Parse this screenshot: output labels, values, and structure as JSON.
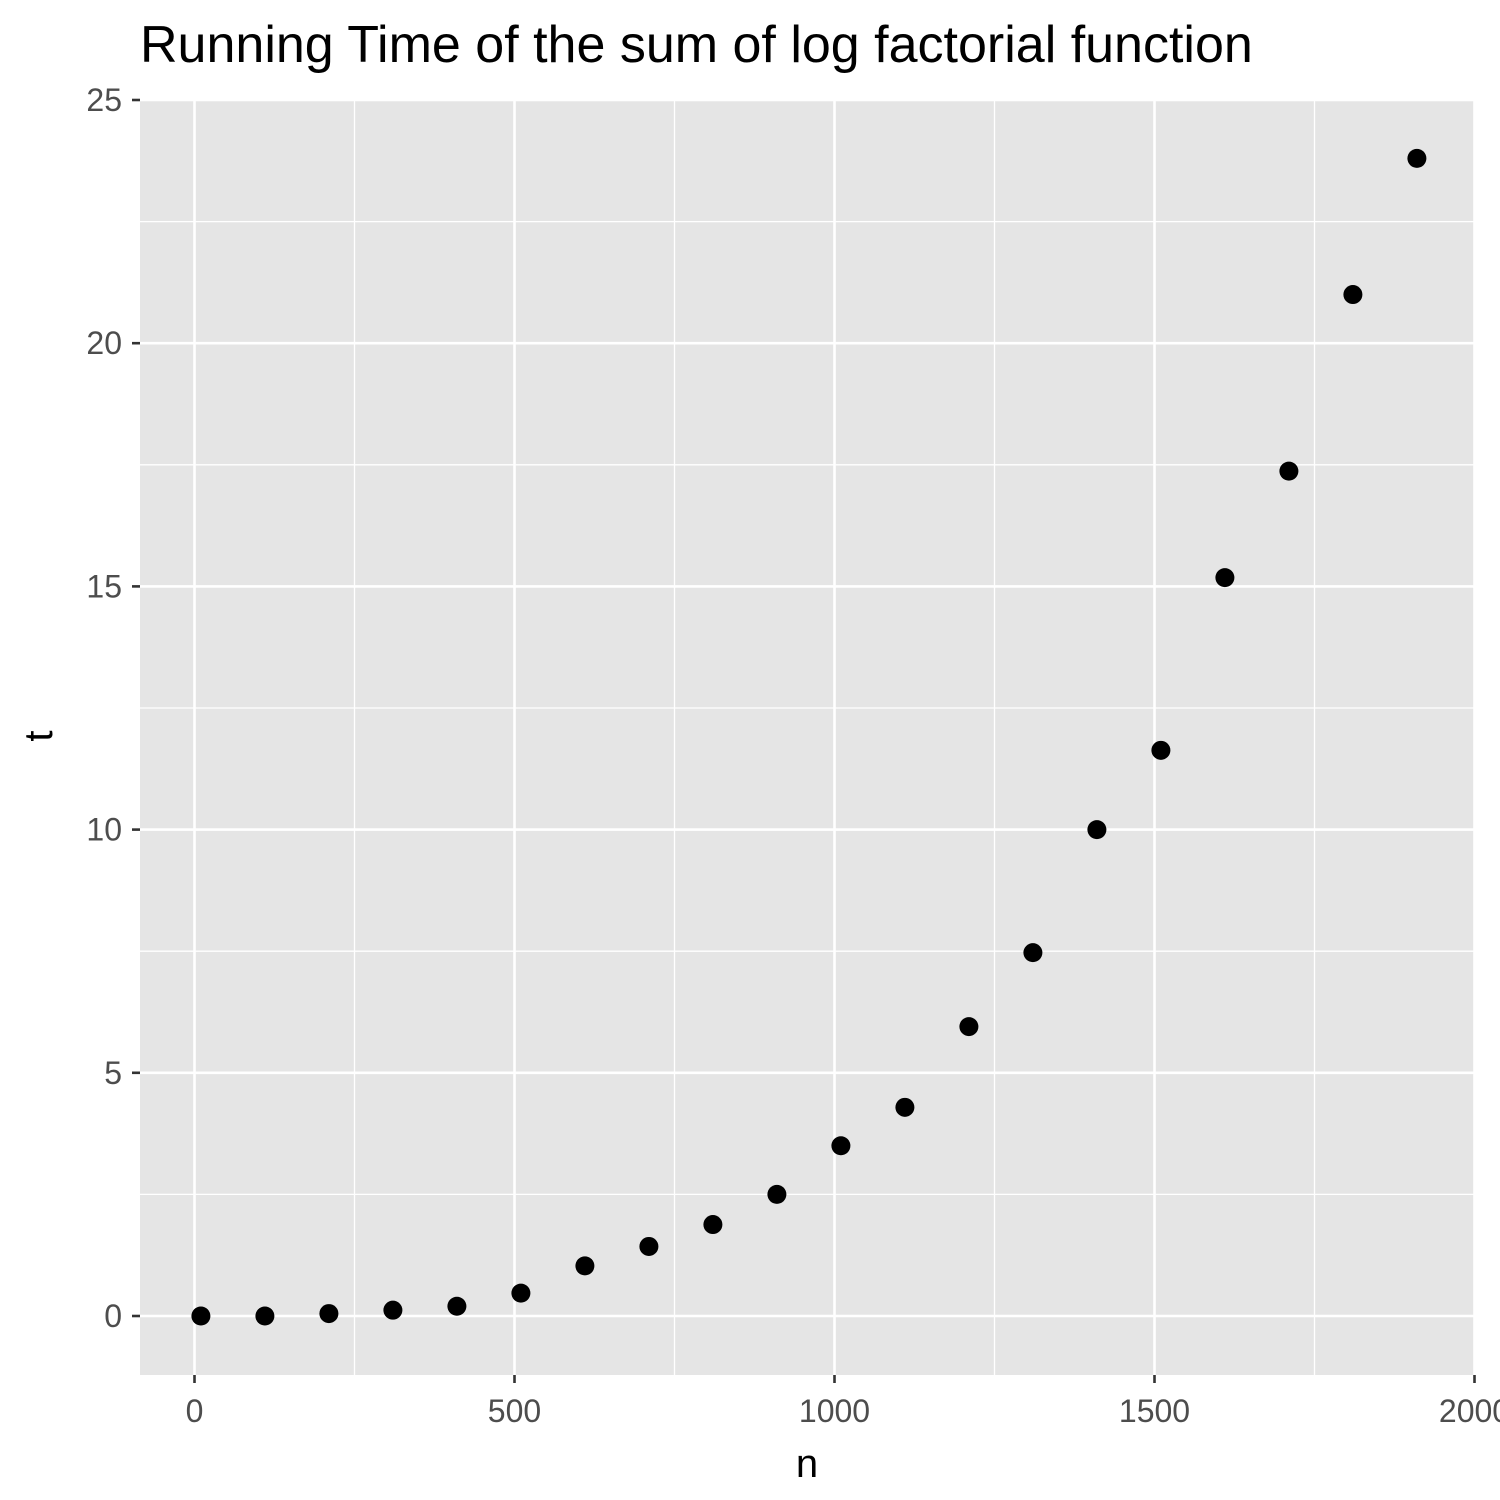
{
  "chart_data": {
    "type": "scatter",
    "title": "Running Time of the sum of log factorial function",
    "xlabel": "n",
    "ylabel": "t",
    "xlim": [
      -80,
      2000
    ],
    "ylim": [
      -1.2,
      25
    ],
    "x_ticks": [
      0,
      500,
      1000,
      1500,
      2000
    ],
    "x_tick_labels": [
      "0",
      "500",
      "1000",
      "1500",
      "2000"
    ],
    "y_ticks": [
      0,
      5,
      10,
      15,
      20,
      25
    ],
    "y_tick_labels": [
      "0",
      "5",
      "10",
      "15",
      "20",
      "25"
    ],
    "grid": true,
    "legend": "none",
    "colors": {
      "panel_background": "#e5e5e5",
      "grid": "#ffffff",
      "point": "#000000",
      "tick_text": "#4d4d4d",
      "axis_tick": "#333333"
    },
    "series": [
      {
        "x": [
          10,
          110,
          210,
          310,
          410,
          510,
          610,
          710,
          810,
          910,
          1010,
          1110,
          1210,
          1310,
          1410,
          1510,
          1610,
          1710,
          1810,
          1910
        ],
        "y": [
          0.0,
          0.0,
          0.05,
          0.12,
          0.2,
          0.47,
          1.03,
          1.43,
          1.88,
          2.5,
          3.5,
          4.29,
          5.95,
          7.47,
          10.0,
          11.63,
          15.18,
          17.37,
          21.0,
          23.8
        ]
      }
    ]
  }
}
